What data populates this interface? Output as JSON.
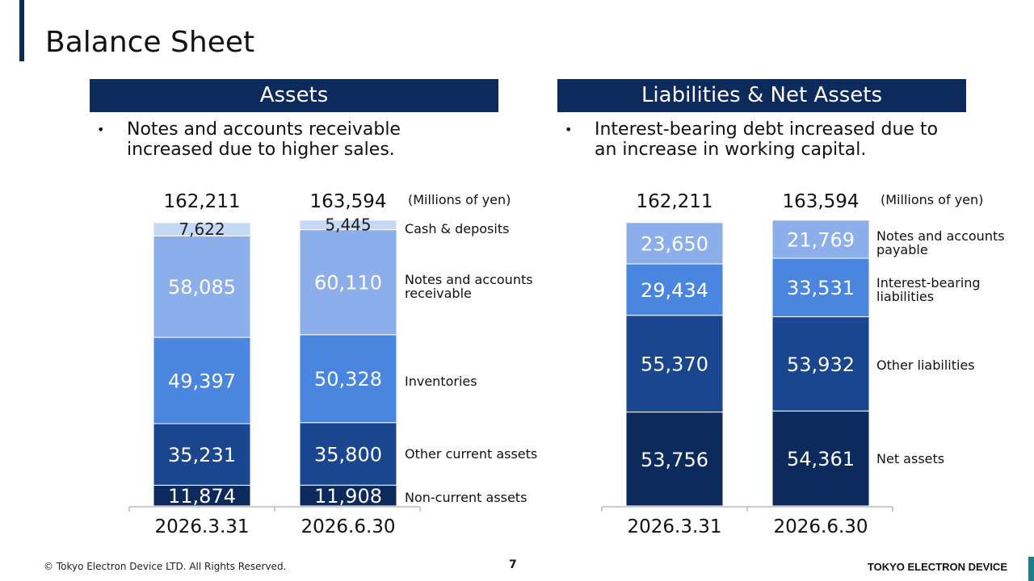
{
  "page": {
    "title": "Balance Sheet",
    "footer_copyright": "© Tokyo Electron Device LTD. All Rights Reserved.",
    "page_number": "7",
    "brand": "TOKYO ELECTRON DEVICE"
  },
  "assets": {
    "header": "Assets",
    "bullet": "Notes and accounts receivable\nincreased due to higher sales."
  },
  "liabilities": {
    "header": "Liabilities & Net Assets",
    "bullet": "Interest-bearing debt increased due to\nan increase in working capital."
  },
  "colors": {
    "navy": "#0d2a5c",
    "dark_blue": "#1a4690",
    "mid_blue": "#4a86e0",
    "light_blue": "#8caeea",
    "pale_blue": "#c6d8f3"
  },
  "chart_data": [
    {
      "type": "bar",
      "stacked": true,
      "unit_label": "(Millions of yen)",
      "categories": [
        "2026.3.31",
        "2026.6.30"
      ],
      "totals": [
        "162,211",
        "163,594"
      ],
      "series": [
        {
          "name": "Non-current assets",
          "values": [
            11874,
            11908
          ],
          "labels": [
            "11,874",
            "11,908"
          ],
          "color": "#0d2a5c"
        },
        {
          "name": "Other current assets",
          "values": [
            35231,
            35800
          ],
          "labels": [
            "35,231",
            "35,800"
          ],
          "color": "#1a4690"
        },
        {
          "name": "Inventories",
          "values": [
            49397,
            50328
          ],
          "labels": [
            "49,397",
            "50,328"
          ],
          "color": "#4a86e0"
        },
        {
          "name": "Notes and accounts\nreceivable",
          "values": [
            58085,
            60110
          ],
          "labels": [
            "58,085",
            "60,110"
          ],
          "color": "#8caeea"
        },
        {
          "name": "Cash & deposits",
          "values": [
            7622,
            5445
          ],
          "labels": [
            "7,622",
            "5,445"
          ],
          "color": "#c6d8f3"
        }
      ]
    },
    {
      "type": "bar",
      "stacked": true,
      "unit_label": "(Millions of yen)",
      "categories": [
        "2026.3.31",
        "2026.6.30"
      ],
      "totals": [
        "162,211",
        "163,594"
      ],
      "series": [
        {
          "name": "Net assets",
          "values": [
            53756,
            54361
          ],
          "labels": [
            "53,756",
            "54,361"
          ],
          "color": "#0d2a5c"
        },
        {
          "name": "Other liabilities",
          "values": [
            55370,
            53932
          ],
          "labels": [
            "55,370",
            "53,932"
          ],
          "color": "#1a4690"
        },
        {
          "name": "Interest-bearing\nliabilities",
          "values": [
            29434,
            33531
          ],
          "labels": [
            "29,434",
            "33,531"
          ],
          "color": "#4a86e0"
        },
        {
          "name": "Notes and accounts\npayable",
          "values": [
            23650,
            21769
          ],
          "labels": [
            "23,650",
            "21,769"
          ],
          "color": "#8caeea"
        }
      ]
    }
  ]
}
